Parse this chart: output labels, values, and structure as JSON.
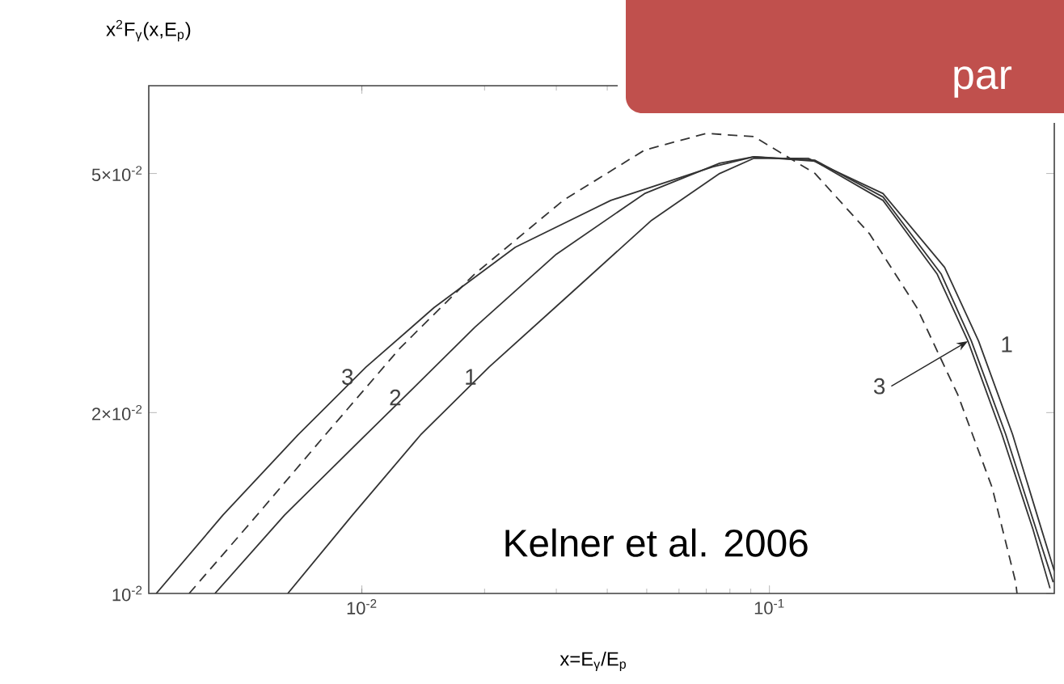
{
  "chart_data": {
    "type": "line",
    "log": "xy",
    "xlabel": "x=E$_{γ}$/E$_{p}$",
    "ylabel": "x$^{2}$F$_{γ}$(x,E$_{p}$)",
    "xlim": [
      0.003,
      0.5
    ],
    "ylim": [
      0.01,
      0.07
    ],
    "xticks": [
      {
        "value": 0.01,
        "label": "10$^{-2}$"
      },
      {
        "value": 0.1,
        "label": "10$^{-1}$"
      }
    ],
    "yticks": [
      {
        "value": 0.01,
        "label": "10$^{-2}$"
      },
      {
        "value": 0.02,
        "label": "2×10$^{-2}$"
      },
      {
        "value": 0.05,
        "label": "5×10$^{-2}$"
      }
    ],
    "series": [
      {
        "name": "3",
        "color": "#333333",
        "line_style": "solid",
        "x": [
          0.00313,
          0.00456,
          0.00697,
          0.01023,
          0.01503,
          0.0238,
          0.0408,
          0.0726,
          0.0916,
          0.1294,
          0.19,
          0.258,
          0.307,
          0.372,
          0.443,
          0.488
        ],
        "values": [
          0.01,
          0.0135,
          0.01836,
          0.0238,
          0.0299,
          0.0377,
          0.0451,
          0.0513,
          0.0533,
          0.0524,
          0.0451,
          0.034,
          0.0263,
          0.0184,
          0.0128,
          0.0102
        ]
      },
      {
        "name": "2",
        "color": "#333333",
        "line_style": "solid",
        "x": [
          0.00436,
          0.00646,
          0.00948,
          0.0134,
          0.0189,
          0.03,
          0.0494,
          0.0755,
          0.0916,
          0.1294,
          0.19,
          0.264,
          0.313,
          0.38,
          0.451,
          0.497
        ],
        "values": [
          0.01,
          0.0135,
          0.01746,
          0.022,
          0.0277,
          0.0367,
          0.0463,
          0.052,
          0.0533,
          0.0526,
          0.0457,
          0.034,
          0.0263,
          0.0184,
          0.0128,
          0.01044
        ]
      },
      {
        "name": "1",
        "color": "#333333",
        "line_style": "solid",
        "x": [
          0.00658,
          0.00948,
          0.01393,
          0.0205,
          0.0324,
          0.0514,
          0.0755,
          0.0916,
          0.1245,
          0.19,
          0.269,
          0.326,
          0.395,
          0.46,
          0.5
        ],
        "values": [
          0.01,
          0.0135,
          0.01836,
          0.0238,
          0.0315,
          0.0418,
          0.05,
          0.053,
          0.053,
          0.0463,
          0.0349,
          0.0263,
          0.0184,
          0.0131,
          0.0109
        ]
      },
      {
        "color": "#333333",
        "line_style": "dashed",
        "x": [
          0.00377,
          0.00553,
          0.00813,
          0.0124,
          0.0189,
          0.0312,
          0.0494,
          0.07,
          0.0916,
          0.1294,
          0.176,
          0.23,
          0.29,
          0.352,
          0.402,
          0.405
        ],
        "values": [
          0.01,
          0.0135,
          0.01836,
          0.0256,
          0.034,
          0.0451,
          0.0547,
          0.0583,
          0.0576,
          0.05,
          0.0397,
          0.0299,
          0.0214,
          0.015,
          0.01044,
          0.01
        ]
      }
    ],
    "annotations": [
      "Kelner et al. 2006",
      "par"
    ]
  }
}
